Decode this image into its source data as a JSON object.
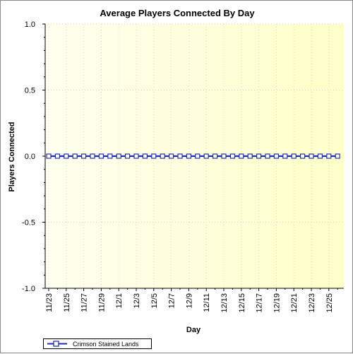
{
  "chart_data": {
    "type": "line",
    "title": "Average Players Connected By Day",
    "xlabel": "Day",
    "ylabel": "Players Connected",
    "ylim": [
      -1.0,
      1.0
    ],
    "yticks": [
      "1.0",
      "0.5",
      "0.0",
      "-0.5",
      "-1.0"
    ],
    "ytick_values": [
      1.0,
      0.5,
      0.0,
      -0.5,
      -1.0
    ],
    "categories": [
      "11/23",
      "11/24",
      "11/25",
      "11/26",
      "11/27",
      "11/28",
      "11/29",
      "11/30",
      "12/1",
      "12/2",
      "12/3",
      "12/4",
      "12/5",
      "12/6",
      "12/7",
      "12/8",
      "12/9",
      "12/10",
      "12/11",
      "12/12",
      "12/13",
      "12/14",
      "12/15",
      "12/16",
      "12/17",
      "12/18",
      "12/19",
      "12/20",
      "12/21",
      "12/22",
      "12/23",
      "12/24",
      "12/25",
      "12/26"
    ],
    "xtick_labels": [
      "11/23",
      "11/25",
      "11/27",
      "11/29",
      "12/1",
      "12/3",
      "12/5",
      "12/7",
      "12/9",
      "12/11",
      "12/13",
      "12/15",
      "12/17",
      "12/19",
      "12/21",
      "12/23",
      "12/25"
    ],
    "series": [
      {
        "name": "Crimson Stained Lands",
        "color": "#1f2fb8",
        "values": [
          0,
          0,
          0,
          0,
          0,
          0,
          0,
          0,
          0,
          0,
          0,
          0,
          0,
          0,
          0,
          0,
          0,
          0,
          0,
          0,
          0,
          0,
          0,
          0,
          0,
          0,
          0,
          0,
          0,
          0,
          0,
          0,
          0,
          0
        ]
      }
    ],
    "grid": true,
    "legend_position": "bottom-left",
    "background": "pale yellow gradient"
  }
}
